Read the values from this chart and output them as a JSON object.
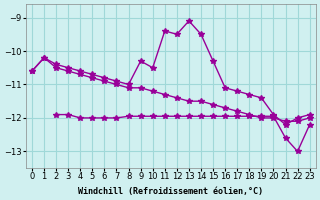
{
  "xlabel": "Windchill (Refroidissement éolien,°C)",
  "background_color": "#d0f0f0",
  "grid_color": "#a0d8d8",
  "line_color": "#990099",
  "ylim": [
    -13.5,
    -8.6
  ],
  "xlim": [
    -0.5,
    23.5
  ],
  "yticks": [
    -13,
    -12,
    -11,
    -10,
    -9
  ],
  "xticks": [
    0,
    1,
    2,
    3,
    4,
    5,
    6,
    7,
    8,
    9,
    10,
    11,
    12,
    13,
    14,
    15,
    16,
    17,
    18,
    19,
    20,
    21,
    22,
    23
  ],
  "line1_x": [
    0,
    1,
    2,
    3,
    4,
    5,
    6,
    7,
    8,
    9,
    10,
    11,
    12,
    13,
    14,
    15,
    16,
    17,
    18,
    19,
    20,
    21,
    22,
    23
  ],
  "line1_y": [
    -10.6,
    -10.2,
    -10.4,
    -10.5,
    -10.6,
    -10.7,
    -10.8,
    -10.9,
    -11.0,
    -10.3,
    -10.5,
    -9.4,
    -9.5,
    -9.1,
    -9.5,
    -10.3,
    -11.1,
    -11.2,
    -11.3,
    -11.4,
    -11.9,
    -12.2,
    -12.0,
    -11.9
  ],
  "line2_x": [
    0,
    1,
    2,
    3,
    4,
    5,
    6,
    7,
    8,
    9,
    10,
    11,
    12,
    13,
    14,
    15,
    16,
    17,
    18,
    19,
    20,
    21,
    22,
    23
  ],
  "line2_y": [
    -10.6,
    -10.2,
    -10.5,
    -10.6,
    -10.7,
    -10.8,
    -10.9,
    -11.0,
    -11.1,
    -11.1,
    -11.2,
    -11.3,
    -11.4,
    -11.5,
    -11.5,
    -11.6,
    -11.7,
    -11.8,
    -11.9,
    -12.0,
    -12.0,
    -12.1,
    -12.1,
    -12.0
  ],
  "line3_x": [
    2,
    3,
    4,
    5,
    6,
    7,
    8,
    9,
    10,
    11,
    12,
    13,
    14,
    15,
    16,
    17,
    18,
    19,
    20,
    21,
    22,
    23
  ],
  "line3_y": [
    -11.9,
    -11.9,
    -12.0,
    -12.0,
    -12.0,
    -12.0,
    -11.95,
    -11.95,
    -11.95,
    -11.95,
    -11.95,
    -11.95,
    -11.95,
    -11.95,
    -11.95,
    -11.95,
    -11.95,
    -11.95,
    -11.95,
    -12.6,
    -13.0,
    -12.2
  ]
}
